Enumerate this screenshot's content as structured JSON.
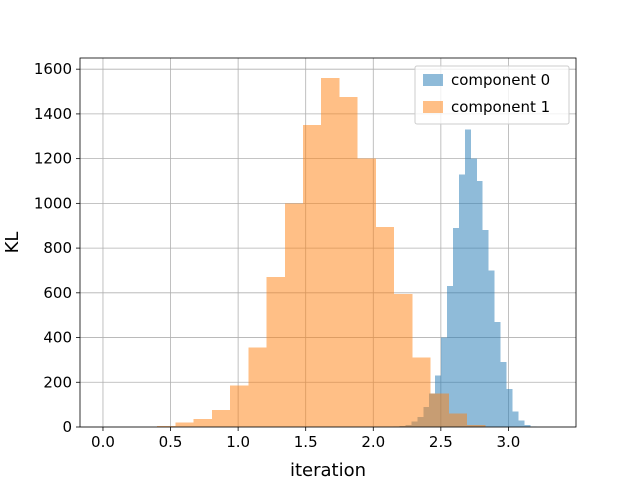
{
  "chart_data": {
    "type": "histogram",
    "xlabel": "iteration",
    "ylabel": "KL",
    "xlim": [
      -0.17,
      3.5
    ],
    "ylim": [
      0,
      1650
    ],
    "xticks": [
      0.0,
      0.5,
      1.0,
      1.5,
      2.0,
      2.5,
      3.0
    ],
    "xtick_labels": [
      "0.0",
      "0.5",
      "1.0",
      "1.5",
      "2.0",
      "2.5",
      "3.0"
    ],
    "yticks": [
      0,
      200,
      400,
      600,
      800,
      1000,
      1200,
      1400,
      1600
    ],
    "ytick_labels": [
      "0",
      "200",
      "400",
      "600",
      "800",
      "1000",
      "1200",
      "1400",
      "1600"
    ],
    "grid": true,
    "legend_position": "top-right",
    "series": [
      {
        "name": "component 0",
        "color": "#1f77b4",
        "opacity": 0.5,
        "bin_start": 2.15,
        "bin_width": 0.044,
        "values": [
          2,
          5,
          10,
          25,
          45,
          90,
          150,
          230,
          400,
          630,
          890,
          1130,
          1330,
          1200,
          1100,
          880,
          700,
          470,
          290,
          170,
          70,
          30,
          10,
          3
        ]
      },
      {
        "name": "component 1",
        "color": "#ff7f0e",
        "opacity": 0.5,
        "bin_start": 0.4,
        "bin_width": 0.135,
        "values": [
          5,
          20,
          35,
          75,
          185,
          355,
          670,
          1000,
          1350,
          1560,
          1475,
          1200,
          895,
          595,
          310,
          150,
          60,
          10
        ]
      }
    ]
  }
}
